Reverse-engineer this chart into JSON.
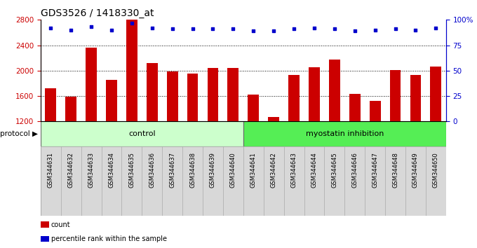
{
  "title": "GDS3526 / 1418330_at",
  "samples": [
    "GSM344631",
    "GSM344632",
    "GSM344633",
    "GSM344634",
    "GSM344635",
    "GSM344636",
    "GSM344637",
    "GSM344638",
    "GSM344639",
    "GSM344640",
    "GSM344641",
    "GSM344642",
    "GSM344643",
    "GSM344644",
    "GSM344645",
    "GSM344646",
    "GSM344647",
    "GSM344648",
    "GSM344649",
    "GSM344650"
  ],
  "counts": [
    1720,
    1590,
    2360,
    1850,
    2800,
    2120,
    1990,
    1960,
    2040,
    2040,
    1620,
    1270,
    1930,
    2050,
    2180,
    1640,
    1520,
    2010,
    1930,
    2060
  ],
  "percentile_ranks": [
    92,
    90,
    93,
    90,
    97,
    92,
    91,
    91,
    91,
    91,
    89,
    89,
    91,
    92,
    91,
    89,
    90,
    91,
    90,
    92
  ],
  "bar_color": "#cc0000",
  "dot_color": "#0000cc",
  "ylim_left": [
    1200,
    2800
  ],
  "ylim_right": [
    0,
    100
  ],
  "yticks_left": [
    1200,
    1600,
    2000,
    2400,
    2800
  ],
  "yticks_right": [
    0,
    25,
    50,
    75,
    100
  ],
  "control_count": 10,
  "myostatin_count": 10,
  "control_label": "control",
  "myostatin_label": "myostatin inhibition",
  "protocol_label": "protocol",
  "legend_count_label": "count",
  "legend_percentile_label": "percentile rank within the sample",
  "bg_xticklabel": "#d8d8d8",
  "bg_control": "#ccffcc",
  "bg_myostatin": "#55ee55",
  "title_fontsize": 10,
  "axis_label_fontsize": 6,
  "tick_fontsize": 7.5
}
